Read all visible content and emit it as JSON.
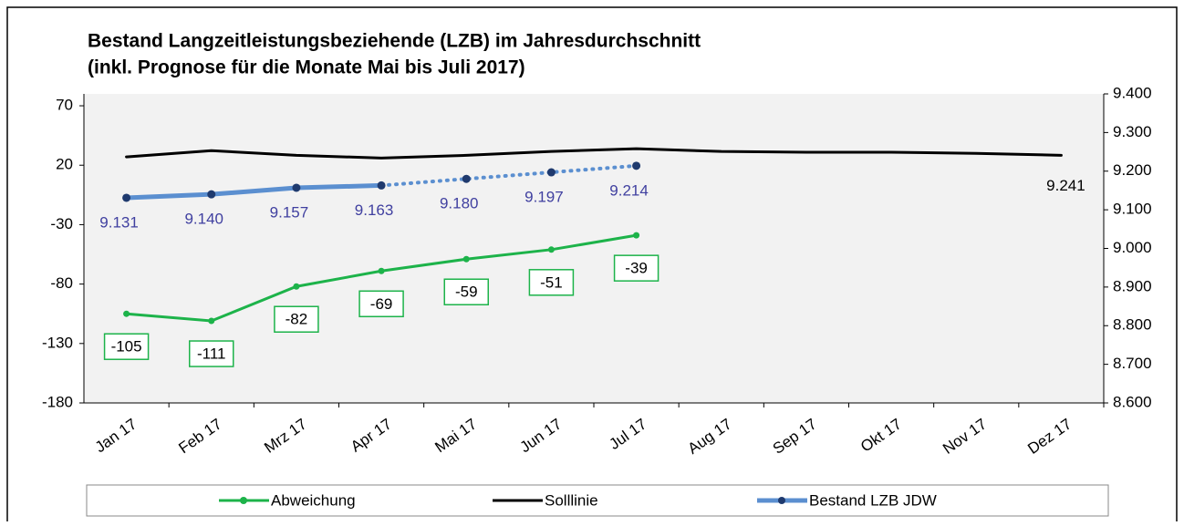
{
  "chart_data": {
    "type": "line",
    "title": "Bestand Langzeitleistungsbeziehende (LZB) im Jahresdurchschnitt",
    "subtitle": "(inkl. Prognose für die Monate Mai bis Juli 2017)",
    "categories": [
      "Jan 17",
      "Feb 17",
      "Mrz 17",
      "Apr 17",
      "Mai 17",
      "Jun 17",
      "Jul 17",
      "Aug 17",
      "Sep 17",
      "Okt 17",
      "Nov 17",
      "Dez 17"
    ],
    "ylim": [
      -180,
      80
    ],
    "yticks": [
      -180,
      -130,
      -80,
      -30,
      20,
      70
    ],
    "y2lim": [
      8600,
      9400
    ],
    "y2ticks": [
      {
        "value": 8600,
        "label": "8.600"
      },
      {
        "value": 8700,
        "label": "8.700"
      },
      {
        "value": 8800,
        "label": "8.800"
      },
      {
        "value": 8900,
        "label": "8.900"
      },
      {
        "value": 9000,
        "label": "9.000"
      },
      {
        "value": 9100,
        "label": "9.100"
      },
      {
        "value": 9200,
        "label": "9.200"
      },
      {
        "value": 9300,
        "label": "9.300"
      },
      {
        "value": 9400,
        "label": "9.400"
      }
    ],
    "legend": "bottom",
    "series": [
      {
        "name": "Abweichung",
        "color": "#1db34a",
        "markers": true,
        "boxed_labels": true,
        "values": [
          -105,
          -111,
          -82,
          -69,
          -59,
          -51,
          -39,
          null,
          null,
          null,
          null,
          null
        ]
      },
      {
        "name": "Solllinie",
        "color": "#000000",
        "axis": "y2",
        "markers": false,
        "values": [
          9237,
          9253,
          9241,
          9234,
          9241,
          9251,
          9258,
          9251,
          9249,
          9249,
          9246,
          9241
        ],
        "value_labels": [
          null,
          null,
          null,
          null,
          null,
          null,
          null,
          null,
          null,
          null,
          null,
          "9.241"
        ]
      },
      {
        "name": "Bestand LZB JDW",
        "color": "#5b8fd0",
        "marker_color": "#1f3a6e",
        "label_color": "#4040a0",
        "axis": "y2",
        "markers": true,
        "dotted_from_index": 3,
        "values": [
          9131,
          9140,
          9157,
          9163,
          9180,
          9197,
          9214,
          null,
          null,
          null,
          null,
          null
        ],
        "value_labels": [
          "9.131",
          "9.140",
          "9.157",
          "9.163",
          "9.180",
          "9.197",
          "9.214",
          null,
          null,
          null,
          null,
          null
        ]
      }
    ]
  }
}
